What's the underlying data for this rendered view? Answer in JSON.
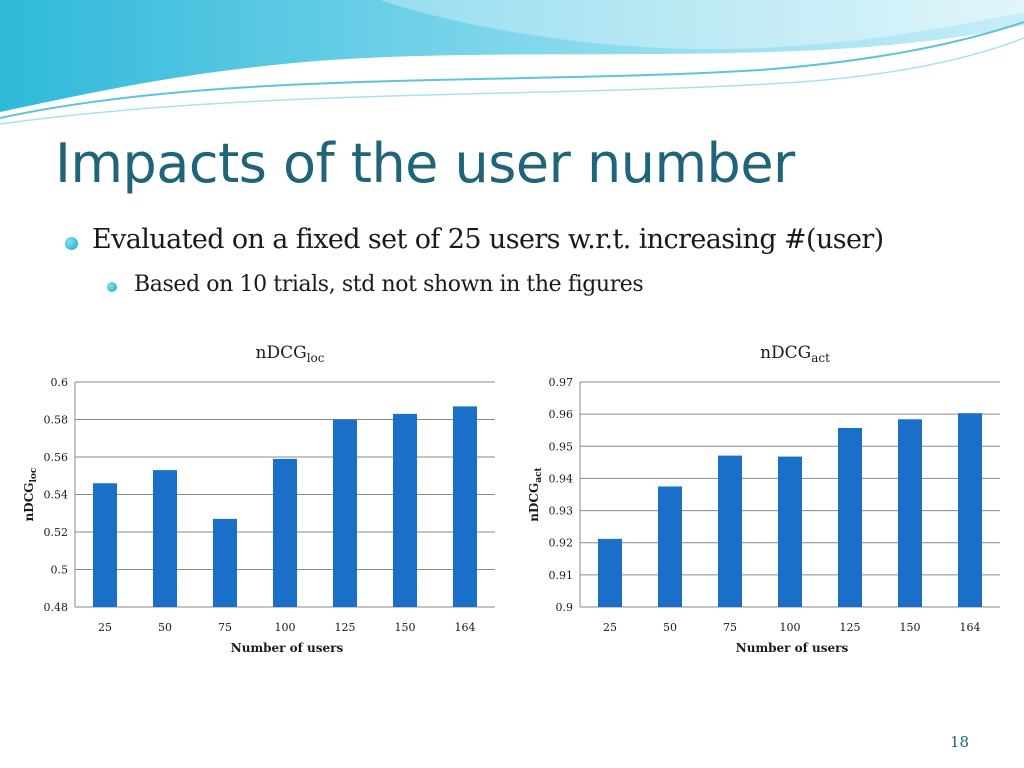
{
  "slide": {
    "title": "Impacts of the user number",
    "bullet1": "Evaluated on a fixed set of 25 users w.r.t. increasing #(user)",
    "bullet2": "Based on 10 trials, std not shown in the figures",
    "page_number": "18"
  },
  "colors": {
    "bar": "#1a6fc9",
    "title": "#1f6478",
    "grid": "#888888"
  },
  "chart_data": [
    {
      "type": "bar",
      "title": "nDCG",
      "title_sub": "loc",
      "xlabel": "Number of users",
      "ylabel": "nDCG",
      "ylabel_sub": "loc",
      "categories": [
        "25",
        "50",
        "75",
        "100",
        "125",
        "150",
        "164"
      ],
      "values": [
        0.546,
        0.553,
        0.527,
        0.559,
        0.58,
        0.583,
        0.587
      ],
      "ylim": [
        0.48,
        0.6
      ],
      "yticks": [
        "0.48",
        "0.5",
        "0.52",
        "0.54",
        "0.56",
        "0.58",
        "0.6"
      ],
      "grid": true
    },
    {
      "type": "bar",
      "title": "nDCG",
      "title_sub": "act",
      "xlabel": "Number of users",
      "ylabel": "nDCG",
      "ylabel_sub": "act",
      "categories": [
        "25",
        "50",
        "75",
        "100",
        "125",
        "150",
        "164"
      ],
      "values": [
        0.9212,
        0.9375,
        0.9471,
        0.9468,
        0.9557,
        0.9584,
        0.9603
      ],
      "ylim": [
        0.9,
        0.97
      ],
      "yticks": [
        "0.9",
        "0.91",
        "0.92",
        "0.93",
        "0.94",
        "0.95",
        "0.96",
        "0.97"
      ],
      "grid": true
    }
  ]
}
